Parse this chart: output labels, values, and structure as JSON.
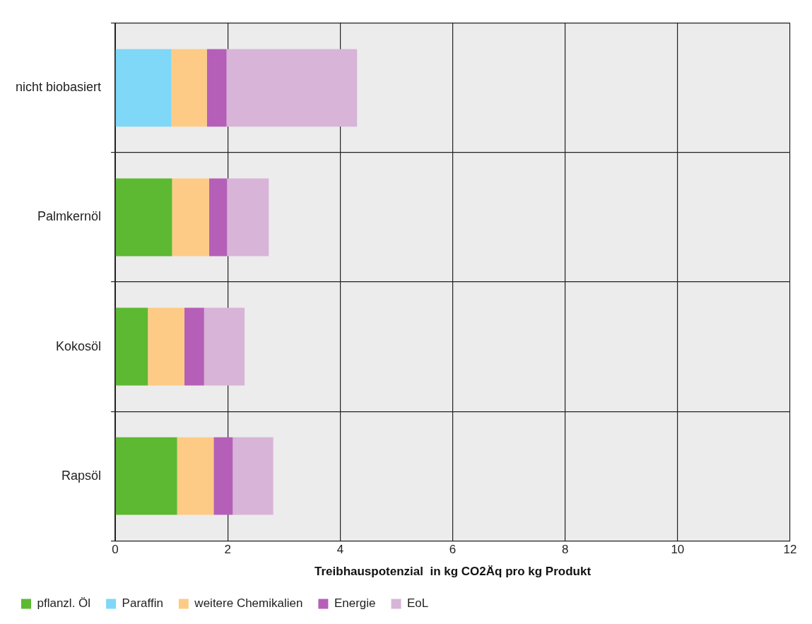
{
  "chart_data": {
    "type": "bar",
    "orientation": "horizontal",
    "stacked": true,
    "xlabel": "Treibhauspotenzial  in kg CO2Äq pro kg Produkt",
    "categories": [
      "nicht biobasiert",
      "Palmkernöl",
      "Kokosöl",
      "Rapsöl"
    ],
    "series": [
      {
        "name": "pflanzl. Öl",
        "color": "#5db832",
        "values": [
          null,
          1.01,
          0.58,
          1.1
        ]
      },
      {
        "name": "Paraffin",
        "color": "#7fd8f7",
        "values": [
          1.0,
          null,
          null,
          null
        ]
      },
      {
        "name": "weitere Chemikalien",
        "color": "#fdcb85",
        "values": [
          0.63,
          0.66,
          0.65,
          0.65
        ]
      },
      {
        "name": "Energie",
        "color": "#b55fb8",
        "values": [
          0.35,
          0.32,
          0.35,
          0.34
        ]
      },
      {
        "name": "EoL",
        "color": "#d8b4d8",
        "values": [
          2.32,
          0.74,
          0.72,
          0.72
        ]
      }
    ],
    "xlim": [
      0,
      12
    ],
    "xticks": [
      0,
      2,
      4,
      6,
      8,
      10,
      12
    ],
    "grid": true,
    "legend": "bottom left"
  }
}
